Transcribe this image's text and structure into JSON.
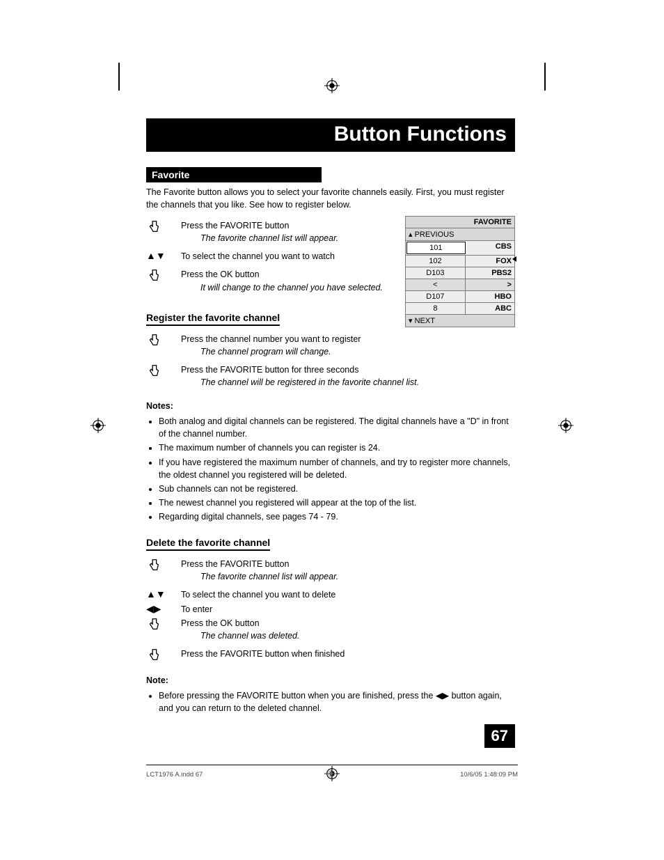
{
  "title": "Button Functions",
  "section_label": "Favorite",
  "intro": "The Favorite button allows you to select your favorite channels easily.  First, you must register the channels that you like.  See how to register below.",
  "steps_a": {
    "s1_text": "Press the FAVORITE button",
    "s1_sub": "The favorite channel list will appear.",
    "s2_text": "To select the channel you want to watch",
    "s3_text": "Press the OK button",
    "s3_sub": "It will change to the channel you have selected."
  },
  "subhead_register": "Register the favorite channel",
  "steps_b": {
    "s1_text": "Press the channel number you want to register",
    "s1_sub": "The channel program will change.",
    "s2_text": "Press the FAVORITE button for three seconds",
    "s2_sub": "The channel will be registered in the favorite channel list."
  },
  "notes_heading": "Notes:",
  "notes": [
    "Both analog and digital channels can be registered.  The digital channels have a \"D\" in front of the channel number.",
    "The maximum number of channels you can register is 24.",
    "If you have registered the maximum number of channels, and try to register more channels, the oldest channel you registered will be deleted.",
    "Sub channels can not be registered.",
    "The newest channel you registered will appear at the top of the list.",
    "Regarding digital channels, see pages 74 - 79."
  ],
  "subhead_delete": "Delete the favorite channel",
  "steps_c": {
    "s1_text": "Press the FAVORITE button",
    "s1_sub": "The favorite channel list will appear.",
    "s2_text": "To select the channel you want to delete",
    "s3_text": "To enter",
    "s4_text": "Press the OK button",
    "s4_sub": "The channel was deleted.",
    "s5_text": "Press the FAVORITE button when finished"
  },
  "note2_heading": "Note:",
  "note2": "Before pressing the FAVORITE button when you are finished, press the ◀▶ button again, and you can return to the deleted channel.",
  "fav_menu": {
    "title": "FAVORITE",
    "prev": "PREVIOUS",
    "next": "NEXT",
    "rows": [
      {
        "num": "101",
        "name": "CBS",
        "selected": true
      },
      {
        "num": "102",
        "name": "FOX"
      },
      {
        "num": "D103",
        "name": "PBS2"
      },
      {
        "num": "<",
        "name": ">",
        "arrow": true
      },
      {
        "num": "D107",
        "name": "HBO"
      },
      {
        "num": "8",
        "name": "ABC"
      }
    ]
  },
  "page_number": "67",
  "footer_left": "LCT1976 A.indd   67",
  "footer_right": "10/6/05   1:48:09 PM"
}
